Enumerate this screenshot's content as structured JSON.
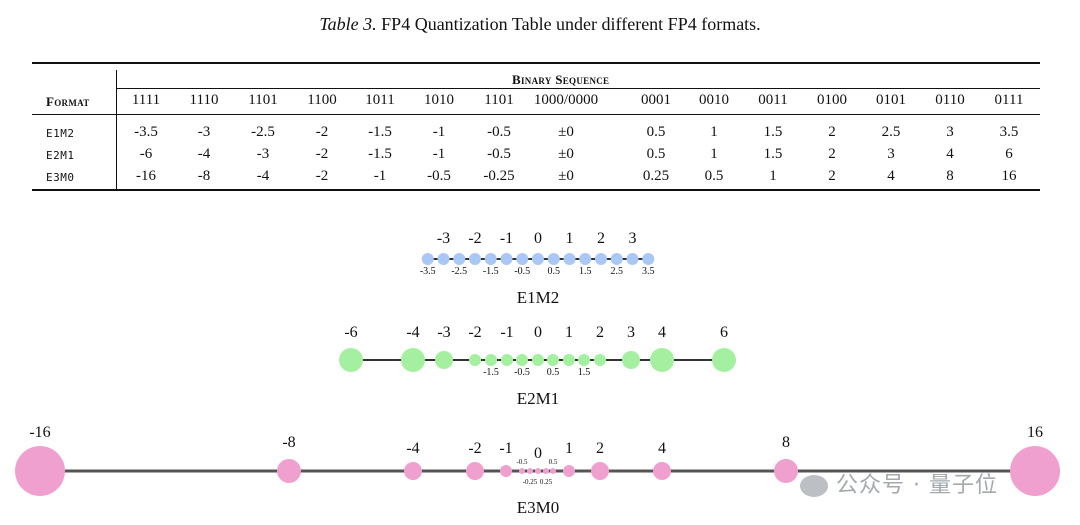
{
  "caption": {
    "label": "Table 3.",
    "text": " FP4 Quantization Table under different FP4 formats."
  },
  "table": {
    "format_header": "Format",
    "group_header": "Binary Sequence",
    "columns": [
      "1111",
      "1110",
      "1101",
      "1100",
      "1011",
      "1010",
      "1101",
      "1000/0000",
      "0001",
      "0010",
      "0011",
      "0100",
      "0101",
      "0110",
      "0111"
    ],
    "rows": [
      {
        "format": "E1M2",
        "values": [
          "-3.5",
          "-3",
          "-2.5",
          "-2",
          "-1.5",
          "-1",
          "-0.5",
          "±0",
          "0.5",
          "1",
          "1.5",
          "2",
          "2.5",
          "3",
          "3.5"
        ]
      },
      {
        "format": "E2M1",
        "values": [
          "-6",
          "-4",
          "-3",
          "-2",
          "-1.5",
          "-1",
          "-0.5",
          "±0",
          "0.5",
          "1",
          "1.5",
          "2",
          "3",
          "4",
          "6"
        ]
      },
      {
        "format": "E3M0",
        "values": [
          "-16",
          "-8",
          "-4",
          "-2",
          "-1",
          "-0.5",
          "-0.25",
          "±0",
          "0.25",
          "0.5",
          "1",
          "2",
          "4",
          "8",
          "16"
        ]
      }
    ]
  },
  "number_lines": [
    {
      "name": "E1M2",
      "color": "#a9c8f5",
      "points": [
        -3.5,
        -3,
        -2.5,
        -2,
        -1.5,
        -1,
        -0.5,
        0,
        0.5,
        1,
        1.5,
        2,
        2.5,
        3,
        3.5
      ],
      "major_labels": [
        "-3",
        "-2",
        "-1",
        "0",
        "1",
        "2",
        "3"
      ],
      "minor_labels": [
        "-3.5",
        "-2.5",
        "-1.5",
        "-0.5",
        "0.5",
        "1.5",
        "2.5",
        "3.5"
      ]
    },
    {
      "name": "E2M1",
      "color": "#a5f0a0",
      "points": [
        -6,
        -4,
        -3,
        -2,
        -1.5,
        -1,
        -0.5,
        0,
        0.5,
        1,
        1.5,
        2,
        3,
        4,
        6
      ],
      "major_labels": [
        "-6",
        "-4",
        "-3",
        "-2",
        "-1",
        "0",
        "1",
        "2",
        "3",
        "4",
        "6"
      ],
      "minor_labels": [
        "-1.5",
        "-0.5",
        "0.5",
        "1.5"
      ]
    },
    {
      "name": "E3M0",
      "color": "#f0a0cf",
      "points": [
        -16,
        -8,
        -4,
        -2,
        -1,
        -0.5,
        -0.25,
        0,
        0.25,
        0.5,
        1,
        2,
        4,
        8,
        16
      ],
      "major_labels": [
        "-16",
        "-8",
        "-4",
        "-2",
        "-1",
        "0",
        "1",
        "2",
        "4",
        "8",
        "16"
      ],
      "minor_labels": [
        "-0.5",
        "0.5",
        "-0.25",
        "0.25"
      ]
    }
  ],
  "watermark": "公众号 · 量子位"
}
